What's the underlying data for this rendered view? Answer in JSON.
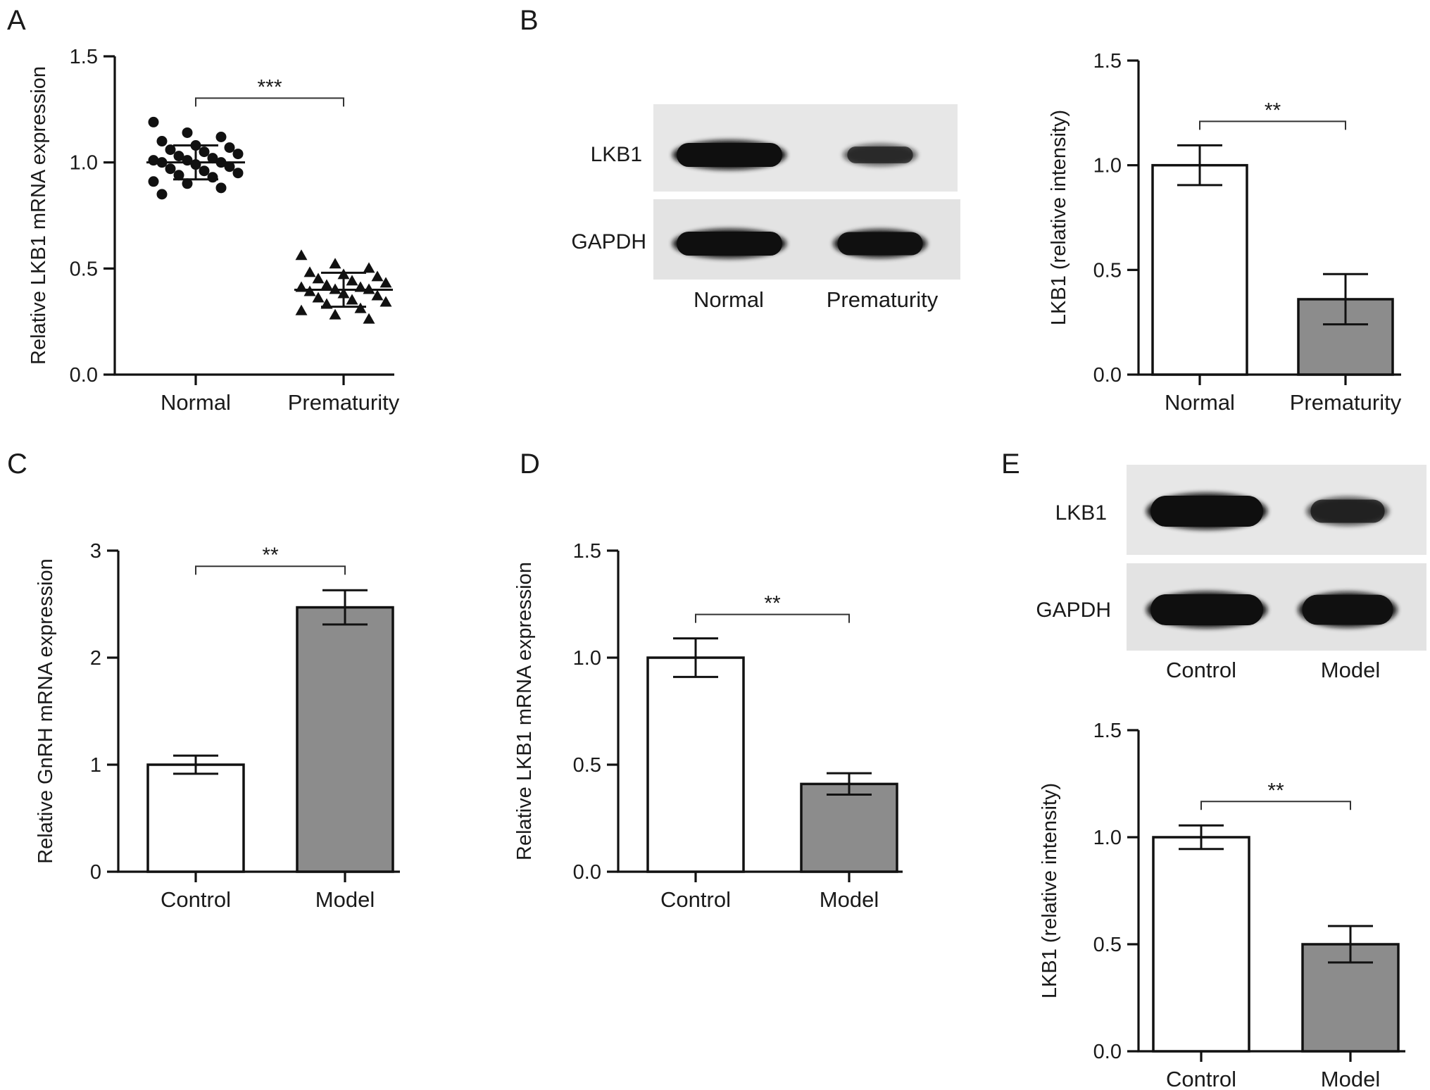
{
  "panels": {
    "A": "A",
    "B": "B",
    "C": "C",
    "D": "D",
    "E": "E"
  },
  "colors": {
    "control_bar": "#ffffff",
    "treated_bar": "#8c8c8c",
    "ink": "#111111",
    "blot_bg": "#e6e6e6",
    "band": "#0f0f0f"
  },
  "blots": {
    "B": {
      "rows": [
        "LKB1",
        "GAPDH"
      ],
      "lanes": [
        "Normal",
        "Prematurity"
      ],
      "band_intensity": {
        "LKB1": [
          1.0,
          0.45
        ],
        "GAPDH": [
          1.0,
          0.95
        ]
      }
    },
    "E": {
      "rows": [
        "LKB1",
        "GAPDH"
      ],
      "lanes": [
        "Control",
        "Model"
      ],
      "band_intensity": {
        "LKB1": [
          1.0,
          0.55
        ],
        "GAPDH": [
          1.0,
          0.95
        ]
      }
    }
  },
  "chart_data": [
    {
      "id": "A",
      "type": "scatter",
      "categories": [
        "Normal",
        "Prematurity"
      ],
      "ylabel": "Relative LKB1 mRNA expression",
      "ylim": [
        0,
        1.5
      ],
      "yticks": [
        "0.0",
        "0.5",
        "1.0",
        "1.5"
      ],
      "significance": "***",
      "series": [
        {
          "category": "Normal",
          "marker": "circle",
          "mean": 1.0,
          "sd": 0.08,
          "values": [
            1.19,
            1.14,
            1.12,
            1.1,
            1.08,
            1.07,
            1.06,
            1.05,
            1.04,
            1.03,
            1.02,
            1.01,
            1.01,
            1.0,
            1.0,
            0.99,
            0.98,
            0.97,
            0.96,
            0.95,
            0.94,
            0.93,
            0.91,
            0.9,
            0.88,
            0.85
          ]
        },
        {
          "category": "Prematurity",
          "marker": "triangle",
          "mean": 0.4,
          "sd": 0.08,
          "values": [
            0.56,
            0.52,
            0.5,
            0.48,
            0.47,
            0.46,
            0.45,
            0.44,
            0.43,
            0.42,
            0.41,
            0.41,
            0.4,
            0.4,
            0.39,
            0.38,
            0.37,
            0.36,
            0.35,
            0.34,
            0.33,
            0.31,
            0.3,
            0.28,
            0.26
          ]
        }
      ]
    },
    {
      "id": "B",
      "type": "bar",
      "categories": [
        "Normal",
        "Prematurity"
      ],
      "values": [
        1.0,
        0.36
      ],
      "errors": [
        0.095,
        0.12
      ],
      "ylabel": "LKB1 (relative intensity)",
      "ylim": [
        0,
        1.5
      ],
      "yticks": [
        "0.0",
        "0.5",
        "1.0",
        "1.5"
      ],
      "significance": "**"
    },
    {
      "id": "C",
      "type": "bar",
      "categories": [
        "Control",
        "Model"
      ],
      "values": [
        1.0,
        2.47
      ],
      "errors": [
        0.085,
        0.16
      ],
      "ylabel": "Relative GnRH mRNA expression",
      "ylim": [
        0,
        3
      ],
      "yticks": [
        "0",
        "1",
        "2",
        "3"
      ],
      "significance": "**"
    },
    {
      "id": "D",
      "type": "bar",
      "categories": [
        "Control",
        "Model"
      ],
      "values": [
        1.0,
        0.41
      ],
      "errors": [
        0.09,
        0.05
      ],
      "ylabel": "Relative LKB1 mRNA expression",
      "ylim": [
        0,
        1.5
      ],
      "yticks": [
        "0.0",
        "0.5",
        "1.0",
        "1.5"
      ],
      "significance": "**"
    },
    {
      "id": "E",
      "type": "bar",
      "categories": [
        "Control",
        "Model"
      ],
      "values": [
        1.0,
        0.5
      ],
      "errors": [
        0.055,
        0.085
      ],
      "ylabel": "LKB1 (relative intensity)",
      "ylim": [
        0,
        1.5
      ],
      "yticks": [
        "0.0",
        "0.5",
        "1.0",
        "1.5"
      ],
      "significance": "**"
    }
  ]
}
